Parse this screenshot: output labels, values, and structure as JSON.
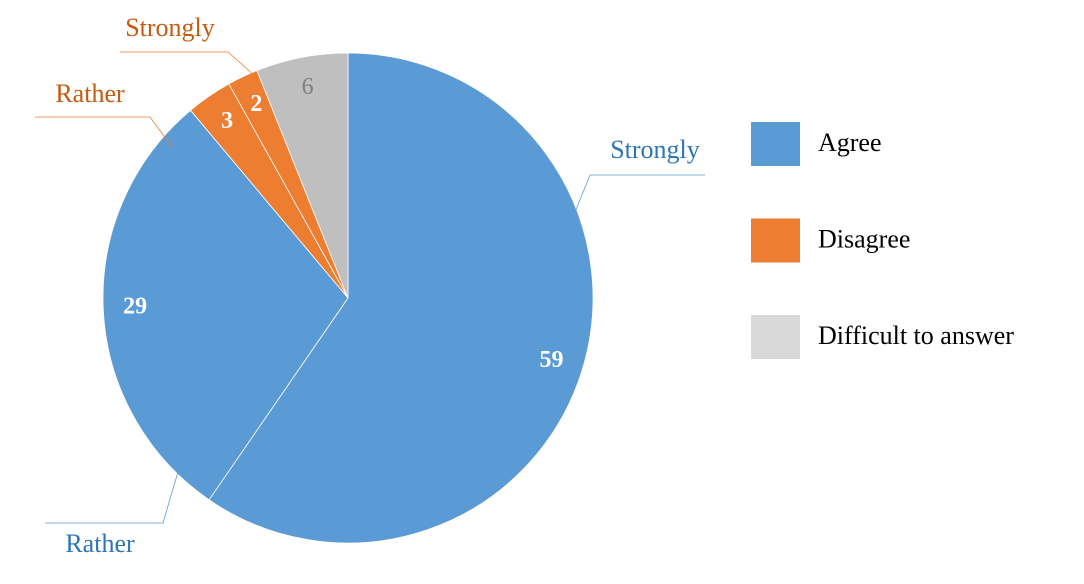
{
  "chart_data": {
    "type": "pie",
    "slices": [
      {
        "name": "Strongly",
        "value": 59,
        "color": "#5b9bd5",
        "label_color": "#2e75b6",
        "value_color": "#ffffff"
      },
      {
        "name": "Rather",
        "value": 29,
        "color": "#5b9bd5",
        "label_color": "#2e75b6",
        "value_color": "#ffffff"
      },
      {
        "name": "Rather",
        "value": 3,
        "color": "#ed7d31",
        "label_color": "#c55a11",
        "value_color": "#ffffff"
      },
      {
        "name": "Strongly",
        "value": 2,
        "color": "#ed7d31",
        "label_color": "#c55a11",
        "value_color": "#ffffff"
      },
      {
        "name": null,
        "value": 6,
        "color": "#bfbfbf",
        "label_color": "#7f7f7f",
        "value_color": "#7f7f7f"
      }
    ],
    "legend": [
      {
        "name": "Agree",
        "color": "#5b9bd5"
      },
      {
        "name": "Disagree",
        "color": "#ed7d31"
      },
      {
        "name": "Difficult to answer",
        "color": "#d9d9d9"
      }
    ]
  }
}
